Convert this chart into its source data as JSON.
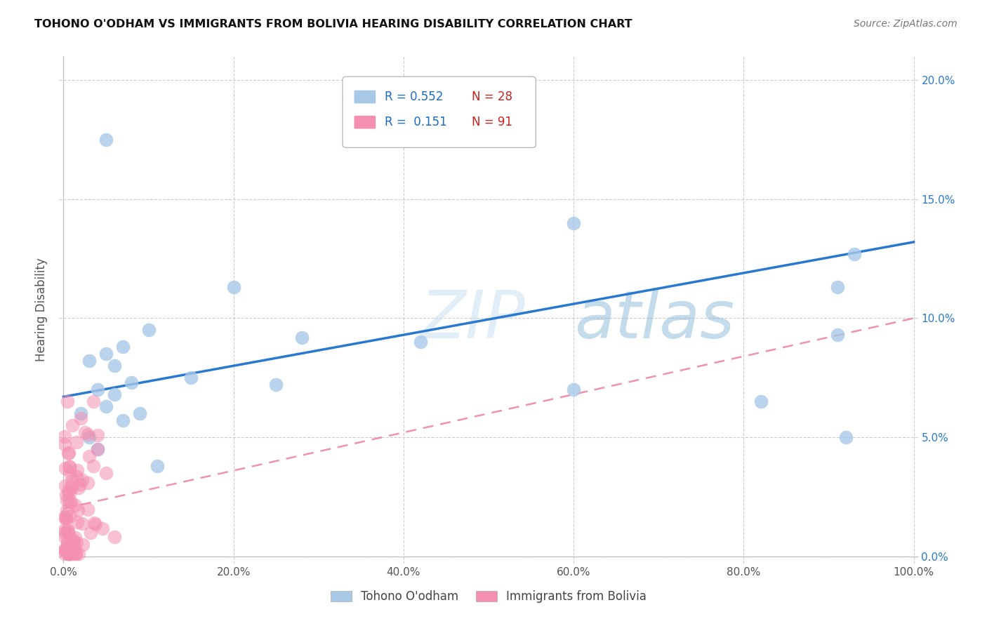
{
  "title": "TOHONO O'ODHAM VS IMMIGRANTS FROM BOLIVIA HEARING DISABILITY CORRELATION CHART",
  "source": "Source: ZipAtlas.com",
  "ylabel": "Hearing Disability",
  "watermark": "ZIPatlas",
  "series1_label": "Tohono O'odham",
  "series2_label": "Immigrants from Bolivia",
  "series1_color": "#a8c8e8",
  "series2_color": "#f48fb1",
  "series1_r": "0.552",
  "series1_n": "28",
  "series2_r": "0.151",
  "series2_n": "91",
  "series1_line_color": "#2979d0",
  "series2_line_color": "#e87090",
  "xlim": [
    0.0,
    1.0
  ],
  "ylim": [
    0.0,
    0.21
  ],
  "xticks": [
    0.0,
    0.2,
    0.4,
    0.6,
    0.8,
    1.0
  ],
  "yticks": [
    0.0,
    0.05,
    0.1,
    0.15,
    0.2
  ],
  "xtick_labels": [
    "0.0%",
    "20.0%",
    "40.0%",
    "60.0%",
    "80.0%",
    "100.0%"
  ],
  "ytick_labels": [
    "0.0%",
    "5.0%",
    "10.0%",
    "15.0%",
    "20.0%"
  ],
  "series1_x": [
    0.05,
    0.1,
    0.2,
    0.28,
    0.42,
    0.6,
    0.82,
    0.91,
    0.93,
    0.02,
    0.03,
    0.04,
    0.05,
    0.06,
    0.07,
    0.03,
    0.05,
    0.07,
    0.08,
    0.04,
    0.06,
    0.09,
    0.11,
    0.15,
    0.25,
    0.6,
    0.91,
    0.92
  ],
  "series1_y": [
    0.175,
    0.095,
    0.113,
    0.092,
    0.09,
    0.14,
    0.065,
    0.113,
    0.127,
    0.06,
    0.05,
    0.045,
    0.063,
    0.08,
    0.057,
    0.082,
    0.085,
    0.088,
    0.073,
    0.07,
    0.068,
    0.06,
    0.038,
    0.075,
    0.072,
    0.07,
    0.093,
    0.05
  ],
  "series1_line_y0": 0.067,
  "series1_line_y1": 0.132,
  "series2_line_y0": 0.02,
  "series2_line_y1": 0.1,
  "background_color": "#ffffff",
  "grid_color": "#cccccc",
  "legend_r_color": "#1a6bcc",
  "legend_n_color": "#cc2222"
}
